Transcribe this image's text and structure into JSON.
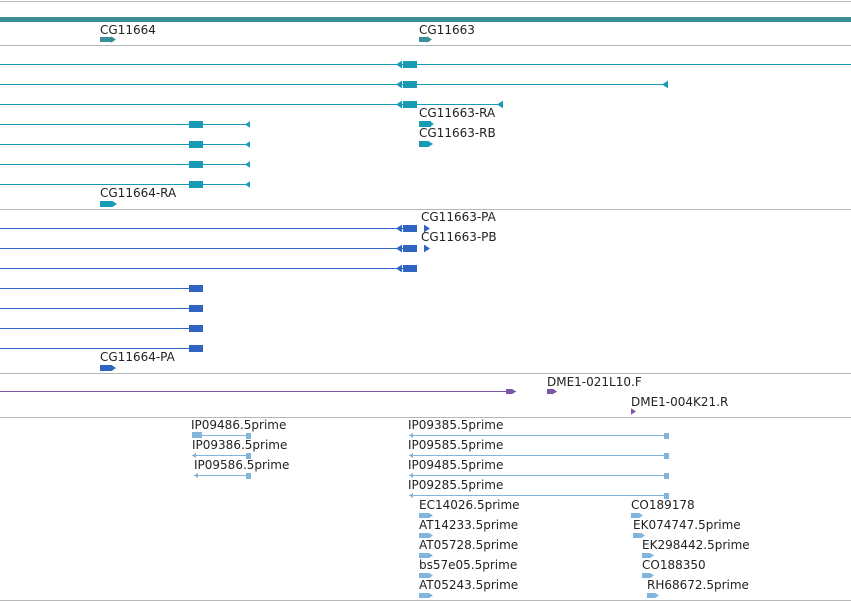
{
  "colors": {
    "gene": "#3a8f96",
    "transcript": "#1a9bb5",
    "protein": "#2f64c2",
    "clone": "#7b57a8",
    "est": "#82b5db",
    "divider": "#b8b8b8",
    "header_bar": "#3a8f96",
    "label": "#222222"
  },
  "tracks": [
    {
      "id": "genes",
      "features": [
        {
          "id": "gene-cg11664",
          "label": "CG11664"
        },
        {
          "id": "gene-cg11663",
          "label": "CG11663"
        }
      ]
    },
    {
      "id": "transcripts",
      "features": [
        {
          "id": "tx-cg11663-ra",
          "label": "CG11663-RA"
        },
        {
          "id": "tx-cg11663-rb",
          "label": "CG11663-RB"
        },
        {
          "id": "tx-cg11664-ra",
          "label": "CG11664-RA"
        }
      ]
    },
    {
      "id": "proteins",
      "features": [
        {
          "id": "pr-cg11663-pa",
          "label": "CG11663-PA"
        },
        {
          "id": "pr-cg11663-pb",
          "label": "CG11663-PB"
        },
        {
          "id": "pr-cg11664-pa",
          "label": "CG11664-PA"
        }
      ]
    },
    {
      "id": "clones",
      "features": [
        {
          "id": "clone-021l10",
          "label": "DME1-021L10.F"
        },
        {
          "id": "clone-004k21",
          "label": "DME1-004K21.R"
        }
      ]
    },
    {
      "id": "ests",
      "features": [
        {
          "id": "est-ip09486",
          "label": "IP09486.5prime"
        },
        {
          "id": "est-ip09386",
          "label": "IP09386.5prime"
        },
        {
          "id": "est-ip09586",
          "label": "IP09586.5prime"
        },
        {
          "id": "est-ip09385",
          "label": "IP09385.5prime"
        },
        {
          "id": "est-ip09585",
          "label": "IP09585.5prime"
        },
        {
          "id": "est-ip09485",
          "label": "IP09485.5prime"
        },
        {
          "id": "est-ip09285",
          "label": "IP09285.5prime"
        },
        {
          "id": "est-ec14026",
          "label": "EC14026.5prime"
        },
        {
          "id": "est-at14233",
          "label": "AT14233.5prime"
        },
        {
          "id": "est-at05728",
          "label": "AT05728.5prime"
        },
        {
          "id": "est-bs57e05",
          "label": "bs57e05.5prime"
        },
        {
          "id": "est-at05243",
          "label": "AT05243.5prime"
        },
        {
          "id": "est-co189178",
          "label": "CO189178"
        },
        {
          "id": "est-ek074747",
          "label": "EK074747.5prime"
        },
        {
          "id": "est-ek298442",
          "label": "EK298442.5prime"
        },
        {
          "id": "est-co188350",
          "label": "CO188350"
        },
        {
          "id": "est-rh68672",
          "label": "RH68672.5prime"
        }
      ]
    }
  ]
}
